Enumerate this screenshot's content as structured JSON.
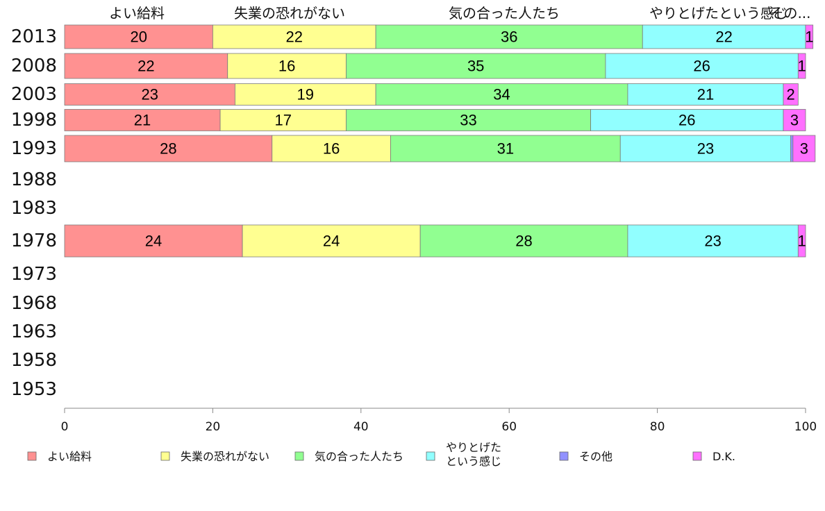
{
  "chart_data": {
    "type": "bar",
    "orientation": "horizontal",
    "stacked": true,
    "xlim": [
      0,
      100
    ],
    "x_ticks": [
      0,
      20,
      40,
      60,
      80,
      100
    ],
    "top_labels": [
      "よい給料",
      "失業の恐れがない",
      "気の合った人たち",
      "やりとげたという感じ",
      "その..."
    ],
    "categories": [
      "2013",
      "2008",
      "2003",
      "1998",
      "1993",
      "1988",
      "1983",
      "1978",
      "1973",
      "1968",
      "1963",
      "1958",
      "1953"
    ],
    "series": [
      {
        "name": "よい給料",
        "color": "#ff9191",
        "values": [
          20,
          22,
          23,
          21,
          28,
          null,
          null,
          24,
          null,
          null,
          null,
          null,
          null
        ]
      },
      {
        "name": "失業の恐れがない",
        "color": "#ffff91",
        "values": [
          22,
          16,
          19,
          17,
          16,
          null,
          null,
          24,
          null,
          null,
          null,
          null,
          null
        ]
      },
      {
        "name": "気の合った人たち",
        "color": "#91ff91",
        "values": [
          36,
          35,
          34,
          33,
          31,
          null,
          null,
          28,
          null,
          null,
          null,
          null,
          null
        ]
      },
      {
        "name": "やりとげたという感じ",
        "color": "#91ffff",
        "values": [
          22,
          26,
          21,
          26,
          23,
          null,
          null,
          23,
          null,
          null,
          null,
          null,
          null
        ]
      },
      {
        "name": "その他",
        "color": "#9191ff",
        "values": [
          0,
          0,
          0,
          0,
          0.3,
          null,
          null,
          0,
          null,
          null,
          null,
          null,
          null
        ]
      },
      {
        "name": "D.K.",
        "color": "#ff70ff",
        "values": [
          1,
          1,
          2,
          3,
          3,
          null,
          null,
          1,
          null,
          null,
          null,
          null,
          null
        ]
      }
    ],
    "legend": [
      {
        "label": "よい給料",
        "color": "#ff9191"
      },
      {
        "label": "失業の恐れがない",
        "color": "#ffff91"
      },
      {
        "label": "気の合った人たち",
        "color": "#91ff91"
      },
      {
        "label": "やりとげた\nという感じ",
        "color": "#91ffff"
      },
      {
        "label": "その他",
        "color": "#9191ff"
      },
      {
        "label": "D.K.",
        "color": "#ff70ff"
      }
    ],
    "legend_position": "bottom",
    "grid": false
  }
}
